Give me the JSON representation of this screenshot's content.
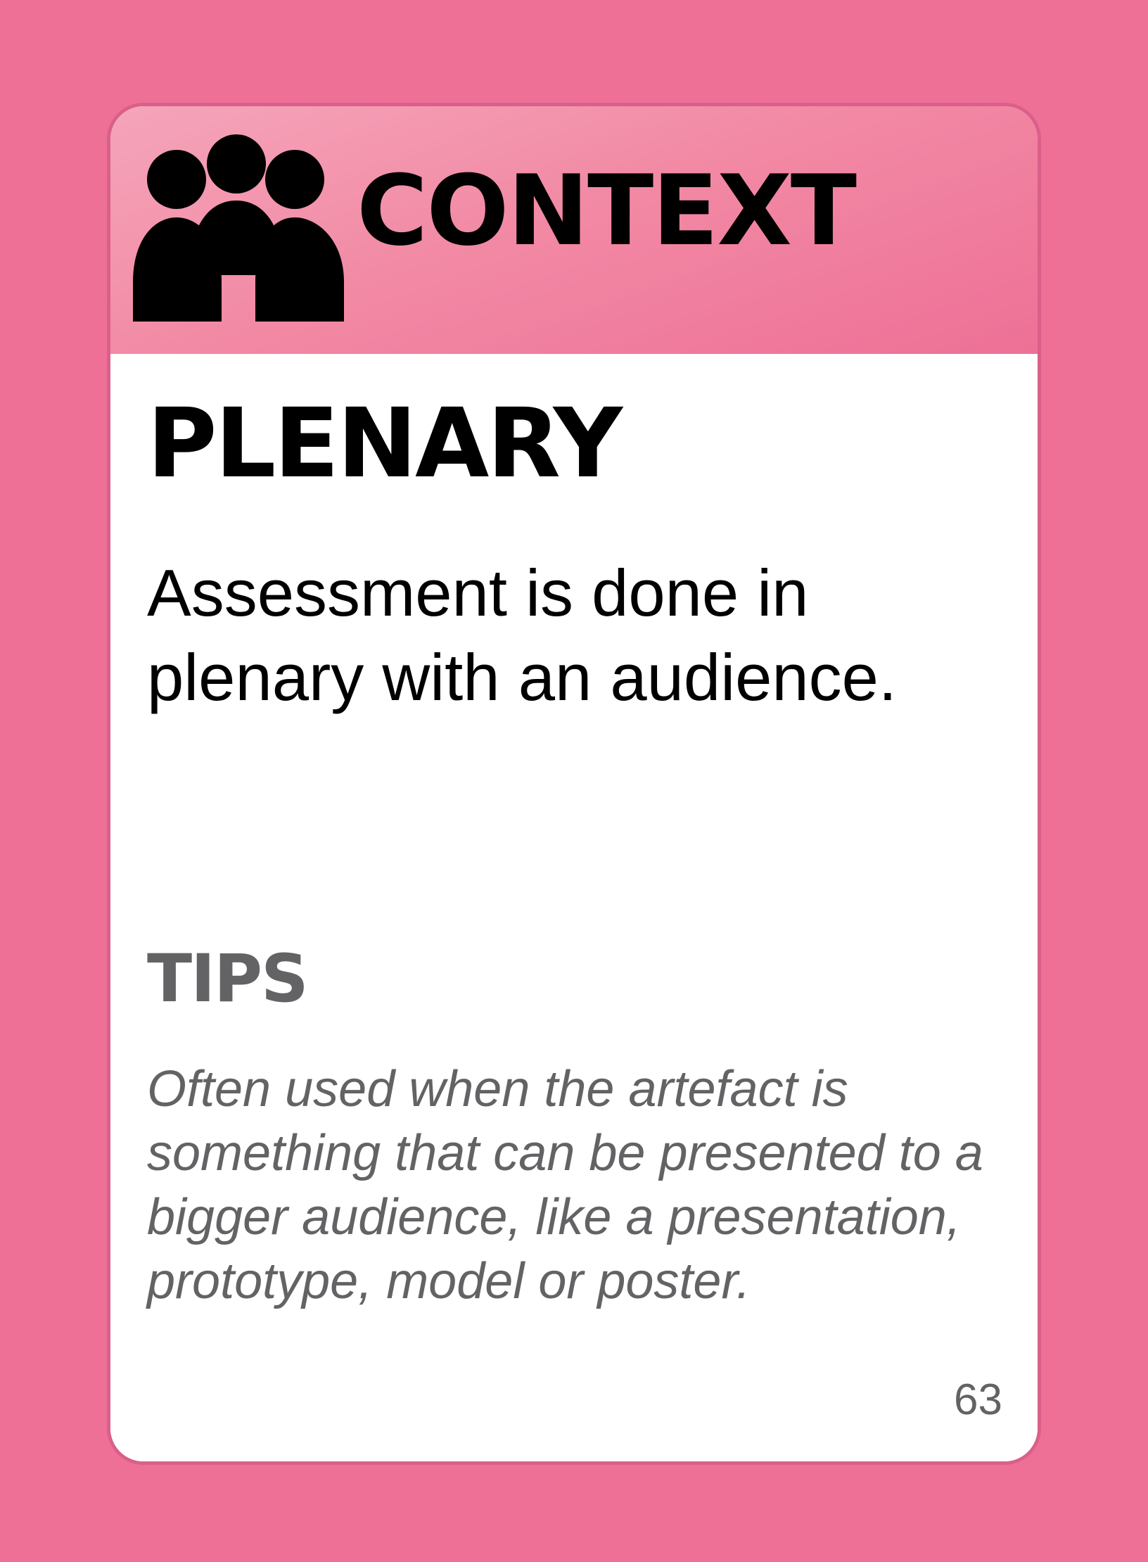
{
  "card": {
    "category": "CONTEXT",
    "category_icon": "people-group-icon",
    "title": "PLENARY",
    "description": "Assessment is done in plenary with an audience.",
    "tips_heading": "TIPS",
    "tips_text": "Often used when the artefact is something that can be presented to a bigger audience, like a presentation, prototype, model or poster.",
    "page_number": "63"
  },
  "colors": {
    "background": "#EE7096",
    "header_light": "#F5A5BA",
    "card_border": "#D9608A",
    "body": "#FFFFFF",
    "title_text": "#000000",
    "tips_text": "#636366"
  }
}
